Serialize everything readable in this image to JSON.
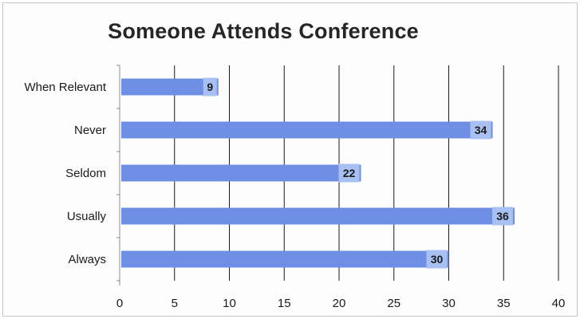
{
  "chart_data": {
    "type": "bar",
    "orientation": "horizontal",
    "title": "Someone Attends Conference",
    "categories": [
      "When Relevant",
      "Never",
      "Seldom",
      "Usually",
      "Always"
    ],
    "values": [
      9,
      34,
      22,
      36,
      30
    ],
    "xlim": [
      0,
      40
    ],
    "xticks": [
      0,
      5,
      10,
      15,
      20,
      25,
      30,
      35,
      40
    ],
    "grid": "vertical",
    "legend": "none",
    "data_labels": true,
    "colors": {
      "bar": "#6f8fe4",
      "label_box": "#a9c0f3",
      "grid": "#1a1a1a"
    }
  }
}
